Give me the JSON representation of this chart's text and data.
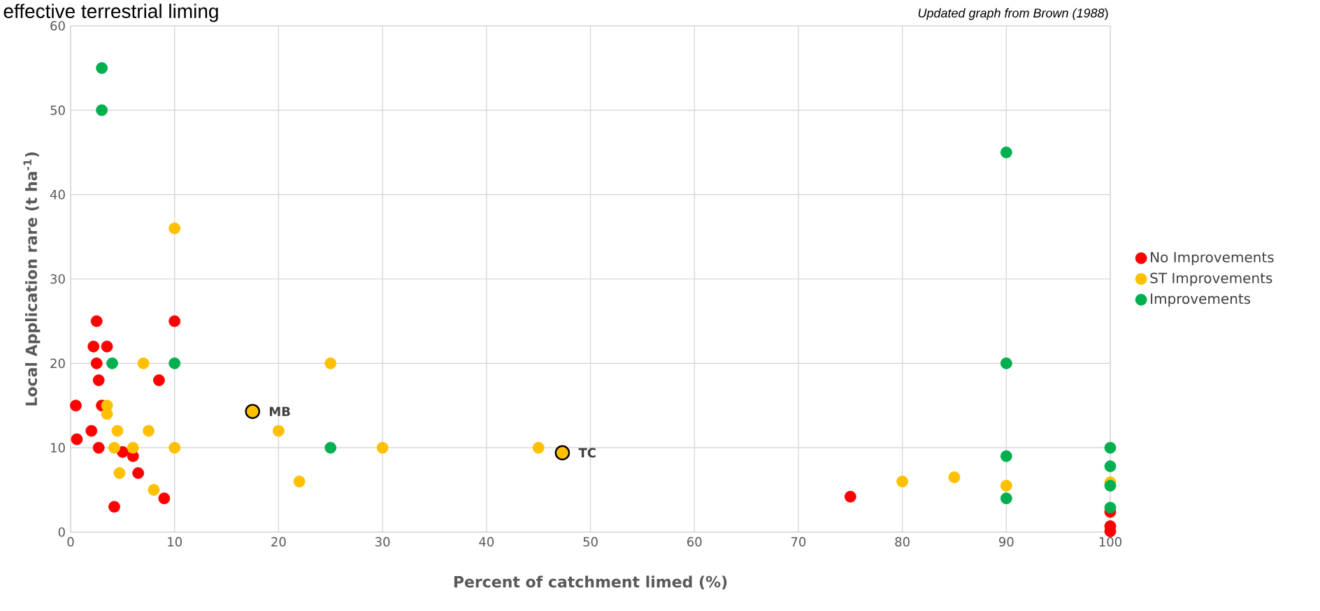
{
  "chart_data": {
    "type": "scatter",
    "title": "effective terrestrial liming",
    "xlabel": "Percent of catchment limed (%)",
    "ylabel": "Local Application rare (t ha$^{-1}$)",
    "annotations": [
      "*Updated graph from Brown (1988*)",
      {
        "text": "MB",
        "x": 17.5,
        "y": 14.3
      },
      {
        "text": "TC",
        "x": 47.3,
        "y": 9.4
      }
    ],
    "series": [
      {
        "name": "No Improvements",
        "color": "#ff0000",
        "x": [
          2.5,
          2.2,
          3.5,
          2.5,
          2.7,
          0.5,
          3.0,
          0.6,
          2.0,
          2.7,
          5.0,
          6.0,
          6.5,
          4.2,
          9.0,
          8.5,
          10,
          75,
          100,
          100,
          100
        ],
        "values": [
          25,
          22,
          22,
          20,
          18,
          15,
          15,
          11,
          12,
          10,
          9.5,
          9,
          7,
          3,
          4,
          18,
          25,
          4.2,
          2.4,
          0.7,
          0.1
        ]
      },
      {
        "name": "ST Improvements",
        "color": "#ffc000",
        "x": [
          3.5,
          3.5,
          4.5,
          7.5,
          7,
          4.2,
          6,
          10,
          4.7,
          8,
          10,
          20,
          22,
          25,
          30,
          45,
          80,
          85,
          90,
          100,
          17.5,
          47.3
        ],
        "values": [
          15,
          14,
          12,
          12,
          20,
          10,
          10,
          10,
          7,
          5,
          36,
          12,
          6,
          20,
          10,
          10,
          6,
          6.5,
          5.5,
          5.9,
          14.3,
          9.4
        ]
      },
      {
        "name": "Improvements",
        "color": "#00b050",
        "x": [
          3,
          3,
          4,
          10,
          25,
          90,
          90,
          90,
          90,
          100,
          100,
          100,
          100
        ],
        "values": [
          55,
          50,
          20,
          20,
          10,
          45,
          20,
          9,
          4,
          10,
          7.8,
          5.5,
          2.9
        ]
      }
    ],
    "xlim": [
      0,
      100
    ],
    "ylim": [
      0,
      60
    ],
    "xticks": [
      0,
      10,
      20,
      30,
      40,
      50,
      60,
      70,
      80,
      90,
      100
    ],
    "yticks": [
      0,
      10,
      20,
      30,
      40,
      50,
      60
    ],
    "grid": true,
    "legend": "right",
    "marker": "circle"
  }
}
